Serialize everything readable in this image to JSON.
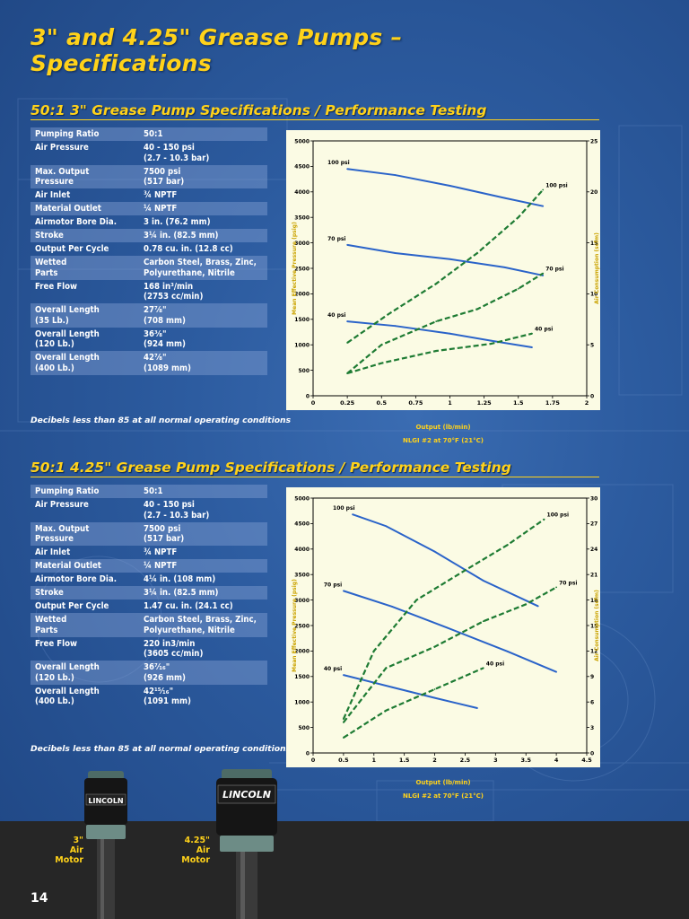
{
  "page": {
    "title_line1": "3\" and 4.25\" Grease Pumps –",
    "title_line2": "Specifications",
    "number": "14"
  },
  "section1": {
    "title": "50:1  3\" Grease Pump Specifications / Performance Testing",
    "note": "Decibels less than 85 at all normal operating conditions",
    "rows": [
      {
        "k1": "Pumping Ratio",
        "k2": "",
        "v1": "50:1",
        "v2": ""
      },
      {
        "k1": "Air Pressure",
        "k2": "",
        "v1": "40 - 150 psi",
        "v2": "(2.7 - 10.3 bar)"
      },
      {
        "k1": "Max. Output",
        "k2": "Pressure",
        "v1": "7500 psi",
        "v2": "(517 bar)"
      },
      {
        "k1": "Air Inlet",
        "k2": "",
        "v1": "¾ NPTF",
        "v2": ""
      },
      {
        "k1": "Material Outlet",
        "k2": "",
        "v1": "¼ NPTF",
        "v2": ""
      },
      {
        "k1": "Airmotor Bore Dia.",
        "k2": "",
        "v1": "3 in. (76.2 mm)",
        "v2": ""
      },
      {
        "k1": "Stroke",
        "k2": "",
        "v1": "3¼ in. (82.5 mm)",
        "v2": ""
      },
      {
        "k1": "Output Per Cycle",
        "k2": "",
        "v1": "0.78 cu. in. (12.8 cc)",
        "v2": ""
      },
      {
        "k1": "Wetted",
        "k2": "Parts",
        "v1": "Carbon Steel, Brass, Zinc,",
        "v2": "Polyurethane, Nitrile"
      },
      {
        "k1": "Free Flow",
        "k2": "",
        "v1": "168 in³/min",
        "v2": "(2753 cc/min)"
      },
      {
        "k1": "Overall Length",
        "k2": "(35 Lb.)",
        "v1": "27⅞\"",
        "v2": "(708 mm)"
      },
      {
        "k1": "Overall Length",
        "k2": "(120 Lb.)",
        "v1": "36⅜\"",
        "v2": "(924 mm)"
      },
      {
        "k1": "Overall Length",
        "k2": "(400 Lb.)",
        "v1": "42⅞\"",
        "v2": "(1089 mm)"
      }
    ]
  },
  "section2": {
    "title": "50:1 4.25\" Grease Pump Specifications / Performance Testing",
    "note": "Decibels less than 85 at all normal operating conditions",
    "rows": [
      {
        "k1": "Pumping Ratio",
        "k2": "",
        "v1": "50:1",
        "v2": ""
      },
      {
        "k1": "Air Pressure",
        "k2": "",
        "v1": "40 - 150 psi",
        "v2": "(2.7 - 10.3 bar)"
      },
      {
        "k1": "Max. Output",
        "k2": "Pressure",
        "v1": "7500 psi",
        "v2": "(517 bar)"
      },
      {
        "k1": "Air Inlet",
        "k2": "",
        "v1": "¾ NPTF",
        "v2": ""
      },
      {
        "k1": "Material Outlet",
        "k2": "",
        "v1": "¼ NPTF",
        "v2": ""
      },
      {
        "k1": "Airmotor Bore Dia.",
        "k2": "",
        "v1": "4¼ in. (108 mm)",
        "v2": ""
      },
      {
        "k1": "Stroke",
        "k2": "",
        "v1": "3¼ in. (82.5 mm)",
        "v2": ""
      },
      {
        "k1": "Output Per Cycle",
        "k2": "",
        "v1": "1.47 cu. in. (24.1 cc)",
        "v2": ""
      },
      {
        "k1": "Wetted",
        "k2": "Parts",
        "v1": "Carbon Steel, Brass, Zinc,",
        "v2": "Polyurethane, Nitrile"
      },
      {
        "k1": "Free Flow",
        "k2": "",
        "v1": "220 in3/min",
        "v2": "(3605 cc/min)"
      },
      {
        "k1": "Overall Length",
        "k2": "(120 Lb.)",
        "v1": "36⁷⁄₁₆\"",
        "v2": "(926 mm)"
      },
      {
        "k1": "Overall Length",
        "k2": "(400 Lb.)",
        "v1": "42¹⁵⁄₁₆\"",
        "v2": "(1091 mm)"
      }
    ]
  },
  "chart_data": [
    {
      "type": "line",
      "title": "",
      "xlabel": "Output (lb/min)",
      "caption": "NLGI #2 at 70°F (21°C)",
      "ylabel": "Mean Effective Pressure (psig)",
      "y2label": "Air Consumption (scfm)",
      "xlim": [
        0,
        2
      ],
      "ylim": [
        0,
        5000
      ],
      "y2lim": [
        0,
        25
      ],
      "xticks": [
        "0",
        "0.25",
        "0.5",
        "0.75",
        "1",
        "1.25",
        "1.5",
        "1.75",
        "2"
      ],
      "yticks": [
        "0",
        "500",
        "1000",
        "1500",
        "2000",
        "2500",
        "3000",
        "3500",
        "4000",
        "4500",
        "5000"
      ],
      "y2ticks": [
        "0",
        "5",
        "10",
        "15",
        "20",
        "25"
      ],
      "colors": {
        "pressure": "#2a63c9",
        "air": "#1e7b33",
        "plot_bg": "#fbfbe4"
      },
      "pressure_series": [
        {
          "name": "100 psi",
          "x": [
            0.25,
            0.6,
            1.0,
            1.4,
            1.68
          ],
          "y": [
            4450,
            4330,
            4120,
            3880,
            3720
          ]
        },
        {
          "name": "70 psi",
          "x": [
            0.25,
            0.6,
            1.0,
            1.4,
            1.68
          ],
          "y": [
            2960,
            2800,
            2680,
            2520,
            2360
          ]
        },
        {
          "name": "40 psi",
          "x": [
            0.25,
            0.6,
            1.0,
            1.3,
            1.6
          ],
          "y": [
            1460,
            1370,
            1220,
            1080,
            950
          ]
        }
      ],
      "air_series": [
        {
          "name": "100 psi",
          "x": [
            0.25,
            0.55,
            0.9,
            1.2,
            1.5,
            1.68
          ],
          "y": [
            5.2,
            8.0,
            11.0,
            14.0,
            17.5,
            20.2
          ]
        },
        {
          "name": "70 psi",
          "x": [
            0.25,
            0.5,
            0.9,
            1.2,
            1.5,
            1.68
          ],
          "y": [
            2.2,
            5.0,
            7.3,
            8.5,
            10.5,
            12.0
          ]
        },
        {
          "name": "40 psi",
          "x": [
            0.25,
            0.5,
            0.9,
            1.3,
            1.6
          ],
          "y": [
            2.2,
            3.2,
            4.4,
            5.1,
            6.1
          ]
        }
      ]
    },
    {
      "type": "line",
      "title": "",
      "xlabel": "Output (lb/min)",
      "caption": "NLGI #2 at 70°F (21°C)",
      "ylabel": "Mean Effective Pressure (psig)",
      "y2label": "Air Consumption (scfm)",
      "xlim": [
        0,
        4.5
      ],
      "ylim": [
        0,
        5000
      ],
      "y2lim": [
        0,
        30
      ],
      "xticks": [
        "0",
        "0.5",
        "1",
        "1.5",
        "2",
        "2.5",
        "3",
        "3.5",
        "4",
        "4.5"
      ],
      "yticks": [
        "0",
        "500",
        "1000",
        "1500",
        "2000",
        "2500",
        "3000",
        "3500",
        "4000",
        "4500",
        "5000"
      ],
      "y2ticks": [
        "0",
        "3",
        "6",
        "9",
        "12",
        "15",
        "18",
        "21",
        "24",
        "27",
        "30"
      ],
      "colors": {
        "pressure": "#2a63c9",
        "air": "#1e7b33",
        "plot_bg": "#fbfbe4"
      },
      "pressure_series": [
        {
          "name": "100 psi",
          "x": [
            0.65,
            1.2,
            2.0,
            2.8,
            3.7
          ],
          "y": [
            4680,
            4450,
            3950,
            3380,
            2880
          ]
        },
        {
          "name": "70 psi",
          "x": [
            0.5,
            1.3,
            2.2,
            3.2,
            4.0
          ],
          "y": [
            3180,
            2870,
            2460,
            1990,
            1590
          ]
        },
        {
          "name": "40 psi",
          "x": [
            0.5,
            1.3,
            2.0,
            2.7
          ],
          "y": [
            1530,
            1290,
            1080,
            880
          ]
        }
      ],
      "air_series": [
        {
          "name": "100 psi",
          "x": [
            0.5,
            1.0,
            1.7,
            2.5,
            3.2,
            3.8
          ],
          "y": [
            4.0,
            12.0,
            18.0,
            21.5,
            24.5,
            27.5
          ]
        },
        {
          "name": "70 psi",
          "x": [
            0.5,
            1.2,
            2.0,
            2.8,
            3.5,
            4.0
          ],
          "y": [
            3.6,
            10.0,
            12.5,
            15.5,
            17.5,
            19.5
          ]
        },
        {
          "name": "40 psi",
          "x": [
            0.5,
            1.2,
            2.0,
            2.8
          ],
          "y": [
            1.8,
            5.0,
            7.5,
            10.0
          ]
        }
      ]
    }
  ],
  "motors": [
    {
      "line1": "3\"",
      "line2": "Air",
      "line3": "Motor",
      "brand": "LINCOLN"
    },
    {
      "line1": "4.25\"",
      "line2": "Air",
      "line3": "Motor",
      "brand": "LINCOLN"
    }
  ]
}
